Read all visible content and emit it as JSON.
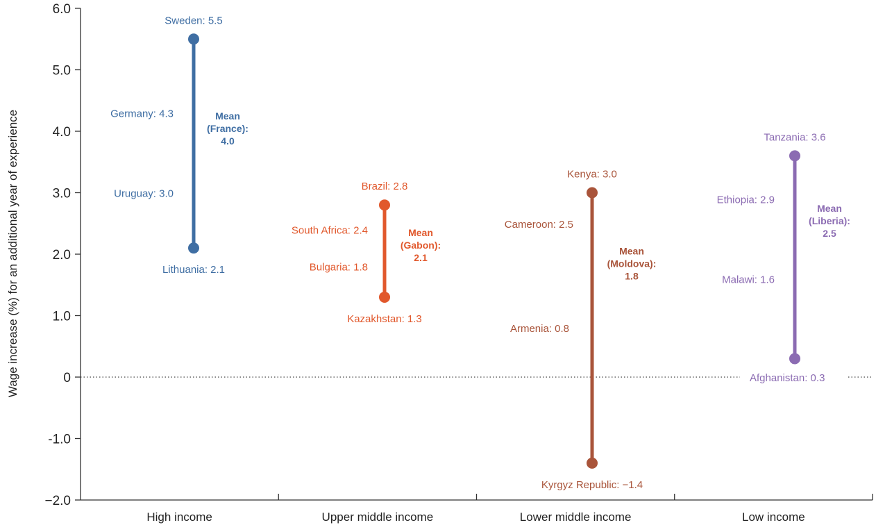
{
  "chart_data": {
    "type": "range",
    "ylabel": "Wage increase (%) for an additional year of experience",
    "ylim": [
      -2.0,
      6.0
    ],
    "yticks": [
      "6.0",
      "5.0",
      "4.0",
      "3.0",
      "2.0",
      "1.0",
      "0",
      "-1.0",
      "−2.0"
    ],
    "ytick_values": [
      6,
      5,
      4,
      3,
      2,
      1,
      0,
      -1,
      -2
    ],
    "zero_line": "dotted",
    "categories": [
      {
        "name": "High income",
        "color": "#3f6ea3",
        "points": [
          {
            "label": "Sweden: 5.5",
            "value": 5.5,
            "marker": true
          },
          {
            "label": "Germany: 4.3",
            "value": 4.3,
            "marker": false
          },
          {
            "label": "Uruguay: 3.0",
            "value": 3.0,
            "marker": false
          },
          {
            "label": "Lithuania: 2.1",
            "value": 2.1,
            "marker": true
          }
        ],
        "mean": {
          "lines": [
            "Mean",
            "(France):",
            "4.0"
          ],
          "value": 4.0
        }
      },
      {
        "name": "Upper middle income",
        "color": "#e1582c",
        "points": [
          {
            "label": "Brazil: 2.8",
            "value": 2.8,
            "marker": true
          },
          {
            "label": "South Africa: 2.4",
            "value": 2.4,
            "marker": false
          },
          {
            "label": "Bulgaria: 1.8",
            "value": 1.8,
            "marker": false
          },
          {
            "label": "Kazakhstan: 1.3",
            "value": 1.3,
            "marker": true
          }
        ],
        "mean": {
          "lines": [
            "Mean",
            "(Gabon):",
            "2.1"
          ],
          "value": 2.1
        }
      },
      {
        "name": "Lower middle income",
        "color": "#a9543a",
        "points": [
          {
            "label": "Kenya: 3.0",
            "value": 3.0,
            "marker": true
          },
          {
            "label": "Cameroon: 2.5",
            "value": 2.5,
            "marker": false
          },
          {
            "label": "Armenia: 0.8",
            "value": 0.8,
            "marker": false
          },
          {
            "label": "Kyrgyz Republic: −1.4",
            "value": -1.4,
            "marker": true
          }
        ],
        "mean": {
          "lines": [
            "Mean",
            "(Moldova):",
            "1.8"
          ],
          "value": 1.8
        }
      },
      {
        "name": "Low income",
        "color": "#8b6bb2",
        "points": [
          {
            "label": "Tanzania: 3.6",
            "value": 3.6,
            "marker": true
          },
          {
            "label": "Ethiopia: 2.9",
            "value": 2.9,
            "marker": false
          },
          {
            "label": "Malawi: 1.6",
            "value": 1.6,
            "marker": false
          },
          {
            "label": "Afghanistan: 0.3",
            "value": 0.3,
            "marker": true
          }
        ],
        "mean": {
          "lines": [
            "Mean",
            "(Liberia):",
            "2.5"
          ],
          "value": 2.5
        }
      }
    ]
  }
}
